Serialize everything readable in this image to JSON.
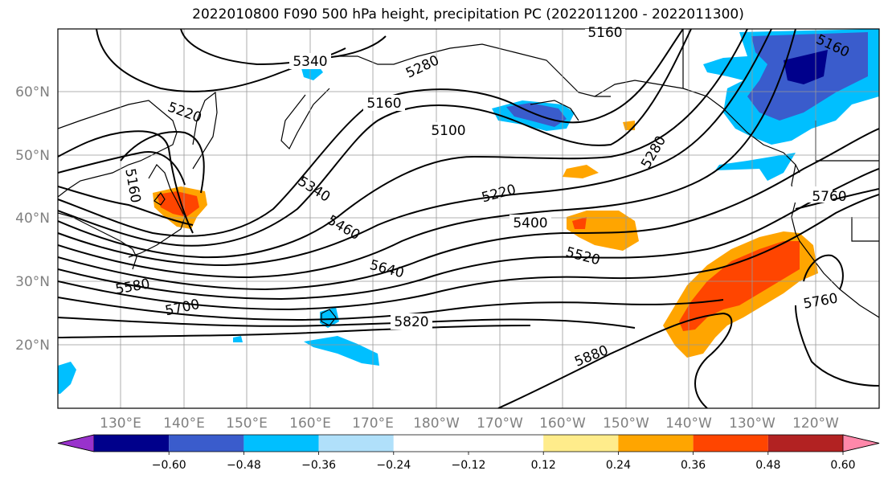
{
  "title": "2022010800 F090 500 hPa height, precipitation PC (2022011200 - 2022011300)",
  "lat_labels": [
    "60°N",
    "50°N",
    "40°N",
    "30°N",
    "20°N"
  ],
  "lon_labels": [
    "130°E",
    "140°E",
    "150°E",
    "160°E",
    "170°E",
    "180°W",
    "170°W",
    "160°W",
    "150°W",
    "140°W",
    "130°W",
    "120°W"
  ],
  "contour_labels": [
    "5160",
    "5340",
    "5280",
    "5160",
    "5220",
    "5100",
    "5160",
    "5160",
    "5280",
    "5220",
    "5340",
    "5460",
    "5400",
    "5520",
    "5640",
    "5580",
    "5700",
    "5820",
    "5880",
    "5760",
    "5760"
  ],
  "colorbar": {
    "colors": [
      "#9932cc",
      "#00008b",
      "#3a5ccc",
      "#00bfff",
      "#b0e0fa",
      "#ffffff",
      "#ffffff",
      "#ffec8b",
      "#ffa500",
      "#ff4500",
      "#b22222",
      "#ff88aa"
    ],
    "tick_labels": [
      "−0.60",
      "−0.48",
      "−0.36",
      "−0.24",
      "−0.12",
      "0.12",
      "0.24",
      "0.36",
      "0.48",
      "0.60"
    ]
  }
}
